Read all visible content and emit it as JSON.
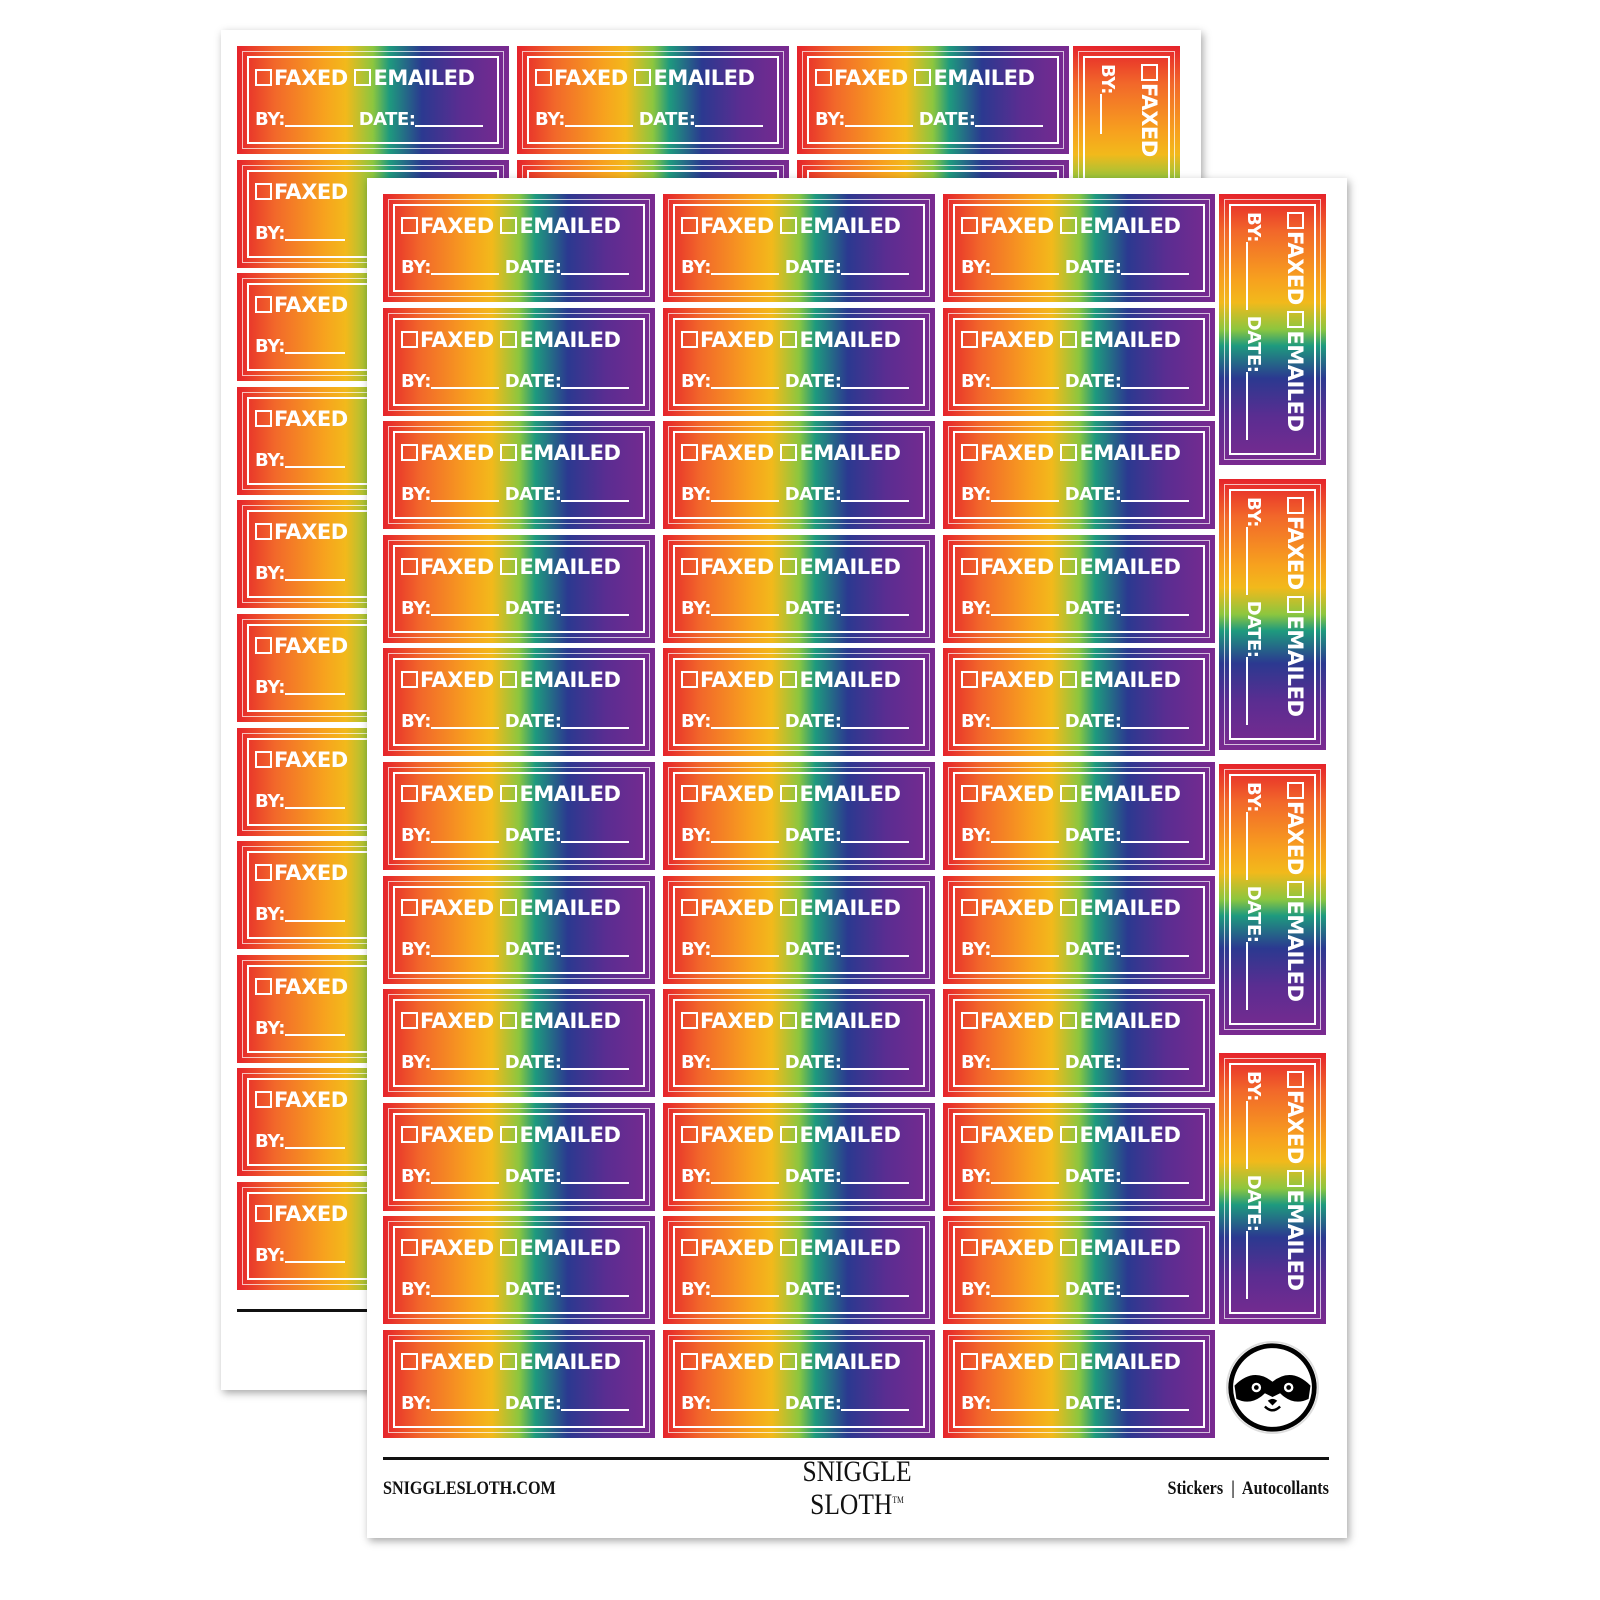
{
  "sticker": {
    "faxed": "FAXED",
    "emailed": "EMAILED",
    "by": "BY:",
    "date": "DATE:"
  },
  "footer": {
    "website": "SNIGGLESLOTH.COM",
    "brand_line1": "SNIGGLE",
    "brand_line2": "SLOTH",
    "trademark": "TM",
    "right_text": "Stickers  |  Autocollants"
  },
  "colors": {
    "gradient": [
      "#e5232b",
      "#f2682a",
      "#f7a21e",
      "#8cc63f",
      "#2b3990",
      "#7a2a90"
    ],
    "text": "#ffffff"
  },
  "icons": {
    "checkbox": "checkbox-icon",
    "logo": "sloth-face-icon"
  }
}
